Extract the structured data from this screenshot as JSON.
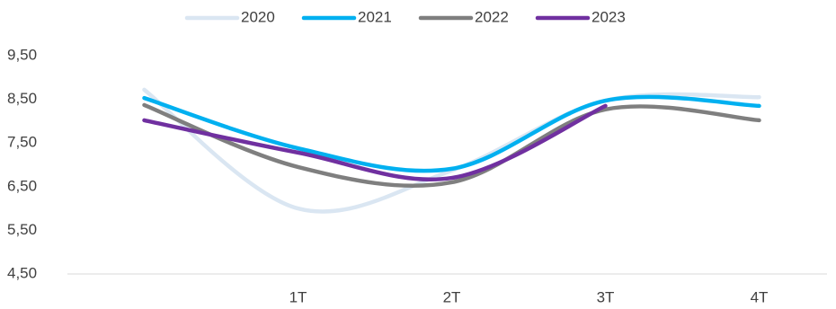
{
  "chart_data": {
    "type": "line",
    "categories": [
      null,
      "1T",
      "2T",
      "3T",
      "4T"
    ],
    "series": [
      {
        "name": "2020",
        "color": "#dae6f2",
        "values": [
          8.72,
          6.0,
          6.87,
          8.47,
          8.55
        ]
      },
      {
        "name": "2021",
        "color": "#00b0f0",
        "values": [
          8.53,
          7.38,
          6.91,
          8.47,
          8.35
        ]
      },
      {
        "name": "2022",
        "color": "#7f7f7f",
        "values": [
          8.37,
          6.95,
          6.6,
          8.27,
          8.02
        ]
      },
      {
        "name": "2023",
        "color": "#7030a0",
        "values": [
          8.02,
          7.28,
          6.7,
          8.35,
          null
        ]
      }
    ],
    "ylim": [
      4.5,
      9.5
    ],
    "yticks": [
      {
        "value": 4.5,
        "label": "4,50"
      },
      {
        "value": 5.5,
        "label": "5,50"
      },
      {
        "value": 6.5,
        "label": "6,50"
      },
      {
        "value": 7.5,
        "label": "7,50"
      },
      {
        "value": 8.5,
        "label": "8,50"
      },
      {
        "value": 9.5,
        "label": "9,50"
      }
    ],
    "grid": false,
    "smooth": true,
    "legend": "top"
  }
}
